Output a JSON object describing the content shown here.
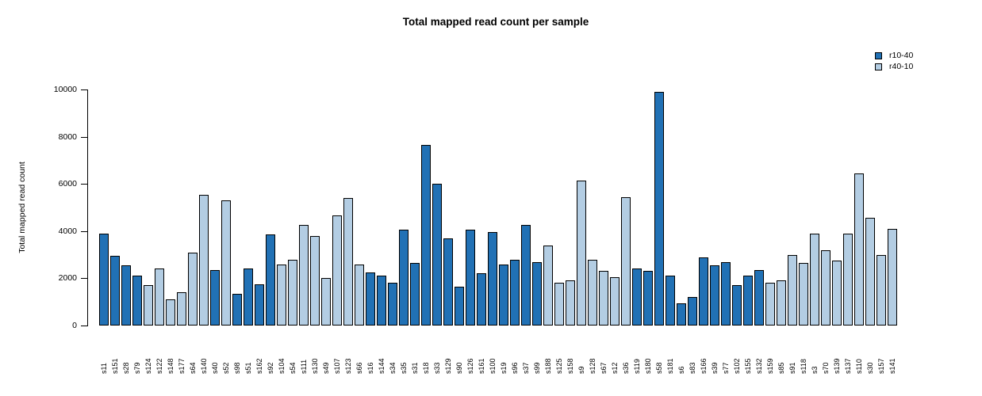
{
  "chart_data": {
    "type": "bar",
    "title": "Total mapped read count per sample",
    "xlabel": "",
    "ylabel": "Total mapped read count",
    "ylim": [
      0,
      10000
    ],
    "yticks": [
      0,
      2000,
      4000,
      6000,
      8000,
      10000
    ],
    "grid": false,
    "bar_border_color": "#000000",
    "legend": {
      "position": "top-right",
      "entries": [
        {
          "label": "r10-40",
          "color": "#2171b5"
        },
        {
          "label": "r40-10",
          "color": "#b3cde3"
        }
      ]
    },
    "samples": [
      {
        "label": "s11",
        "value": 3900,
        "series": "r10-40"
      },
      {
        "label": "s151",
        "value": 2950,
        "series": "r10-40"
      },
      {
        "label": "s28",
        "value": 2550,
        "series": "r10-40"
      },
      {
        "label": "s79",
        "value": 2100,
        "series": "r10-40"
      },
      {
        "label": "s124",
        "value": 1700,
        "series": "r40-10"
      },
      {
        "label": "s122",
        "value": 2400,
        "series": "r40-10"
      },
      {
        "label": "s148",
        "value": 1100,
        "series": "r40-10"
      },
      {
        "label": "s177",
        "value": 1400,
        "series": "r40-10"
      },
      {
        "label": "s64",
        "value": 3100,
        "series": "r40-10"
      },
      {
        "label": "s140",
        "value": 5550,
        "series": "r40-10"
      },
      {
        "label": "s40",
        "value": 2350,
        "series": "r10-40"
      },
      {
        "label": "s52",
        "value": 5300,
        "series": "r40-10"
      },
      {
        "label": "s98",
        "value": 1350,
        "series": "r10-40"
      },
      {
        "label": "s51",
        "value": 2400,
        "series": "r10-40"
      },
      {
        "label": "s162",
        "value": 1750,
        "series": "r10-40"
      },
      {
        "label": "s92",
        "value": 3850,
        "series": "r10-40"
      },
      {
        "label": "s104",
        "value": 2600,
        "series": "r40-10"
      },
      {
        "label": "s54",
        "value": 2800,
        "series": "r40-10"
      },
      {
        "label": "s111",
        "value": 4250,
        "series": "r40-10"
      },
      {
        "label": "s130",
        "value": 3800,
        "series": "r40-10"
      },
      {
        "label": "s49",
        "value": 2000,
        "series": "r40-10"
      },
      {
        "label": "s107",
        "value": 4650,
        "series": "r40-10"
      },
      {
        "label": "s123",
        "value": 5400,
        "series": "r40-10"
      },
      {
        "label": "s66",
        "value": 2600,
        "series": "r40-10"
      },
      {
        "label": "s16",
        "value": 2250,
        "series": "r10-40"
      },
      {
        "label": "s144",
        "value": 2100,
        "series": "r10-40"
      },
      {
        "label": "s34",
        "value": 1800,
        "series": "r10-40"
      },
      {
        "label": "s35",
        "value": 4050,
        "series": "r10-40"
      },
      {
        "label": "s31",
        "value": 2650,
        "series": "r10-40"
      },
      {
        "label": "s18",
        "value": 7650,
        "series": "r10-40"
      },
      {
        "label": "s33",
        "value": 6000,
        "series": "r10-40"
      },
      {
        "label": "s129",
        "value": 3700,
        "series": "r10-40"
      },
      {
        "label": "s90",
        "value": 1650,
        "series": "r10-40"
      },
      {
        "label": "s126",
        "value": 4050,
        "series": "r10-40"
      },
      {
        "label": "s161",
        "value": 2200,
        "series": "r10-40"
      },
      {
        "label": "s100",
        "value": 3950,
        "series": "r10-40"
      },
      {
        "label": "s19",
        "value": 2600,
        "series": "r10-40"
      },
      {
        "label": "s96",
        "value": 2800,
        "series": "r10-40"
      },
      {
        "label": "s37",
        "value": 4250,
        "series": "r10-40"
      },
      {
        "label": "s99",
        "value": 2700,
        "series": "r10-40"
      },
      {
        "label": "s188",
        "value": 3400,
        "series": "r40-10"
      },
      {
        "label": "s125",
        "value": 1800,
        "series": "r40-10"
      },
      {
        "label": "s158",
        "value": 1900,
        "series": "r40-10"
      },
      {
        "label": "s9",
        "value": 6150,
        "series": "r40-10"
      },
      {
        "label": "s128",
        "value": 2800,
        "series": "r40-10"
      },
      {
        "label": "s67",
        "value": 2300,
        "series": "r40-10"
      },
      {
        "label": "s12",
        "value": 2050,
        "series": "r40-10"
      },
      {
        "label": "s36",
        "value": 5450,
        "series": "r40-10"
      },
      {
        "label": "s119",
        "value": 2400,
        "series": "r10-40"
      },
      {
        "label": "s180",
        "value": 2300,
        "series": "r10-40"
      },
      {
        "label": "s58",
        "value": 9900,
        "series": "r10-40"
      },
      {
        "label": "s181",
        "value": 2100,
        "series": "r10-40"
      },
      {
        "label": "s6",
        "value": 950,
        "series": "r10-40"
      },
      {
        "label": "s83",
        "value": 1200,
        "series": "r10-40"
      },
      {
        "label": "s166",
        "value": 2900,
        "series": "r10-40"
      },
      {
        "label": "s39",
        "value": 2550,
        "series": "r10-40"
      },
      {
        "label": "s77",
        "value": 2700,
        "series": "r10-40"
      },
      {
        "label": "s102",
        "value": 1700,
        "series": "r10-40"
      },
      {
        "label": "s155",
        "value": 2100,
        "series": "r10-40"
      },
      {
        "label": "s132",
        "value": 2350,
        "series": "r10-40"
      },
      {
        "label": "s159",
        "value": 1800,
        "series": "r40-10"
      },
      {
        "label": "s85",
        "value": 1900,
        "series": "r40-10"
      },
      {
        "label": "s91",
        "value": 3000,
        "series": "r40-10"
      },
      {
        "label": "s118",
        "value": 2650,
        "series": "r40-10"
      },
      {
        "label": "s3",
        "value": 3900,
        "series": "r40-10"
      },
      {
        "label": "s70",
        "value": 3200,
        "series": "r40-10"
      },
      {
        "label": "s139",
        "value": 2750,
        "series": "r40-10"
      },
      {
        "label": "s137",
        "value": 3900,
        "series": "r40-10"
      },
      {
        "label": "s110",
        "value": 6450,
        "series": "r40-10"
      },
      {
        "label": "s30",
        "value": 4550,
        "series": "r40-10"
      },
      {
        "label": "s157",
        "value": 3000,
        "series": "r40-10"
      },
      {
        "label": "s141",
        "value": 4100,
        "series": "r40-10"
      }
    ]
  }
}
